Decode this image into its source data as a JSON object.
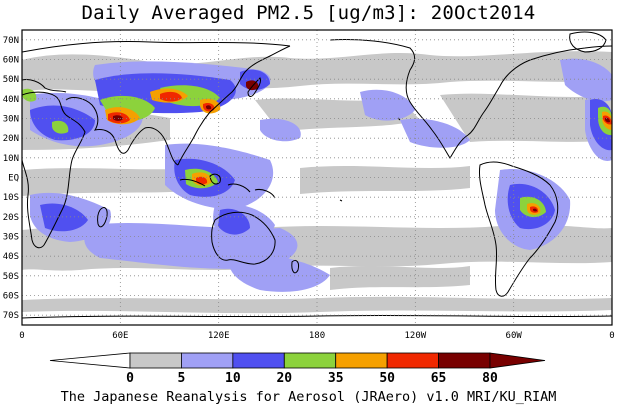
{
  "title": "Daily Averaged PM2.5 [ug/m3]: 20Oct2014",
  "footer": "The Japanese Reanalysis for Aerosol (JRAero) v1.0 MRI/KU_RIAM",
  "map": {
    "lat_range": [
      -75,
      75
    ],
    "lon_range": [
      0,
      360
    ],
    "lat_labels": [
      "70N",
      "60N",
      "50N",
      "40N",
      "30N",
      "20N",
      "10N",
      "EQ",
      "10S",
      "20S",
      "30S",
      "40S",
      "50S",
      "60S",
      "70S"
    ],
    "lon_labels": [
      "0",
      "60E",
      "120E",
      "180",
      "120W",
      "60W",
      "0"
    ],
    "gridlines": true
  },
  "colorbar": {
    "levels": [
      "0",
      "5",
      "10",
      "20",
      "35",
      "50",
      "65",
      "80"
    ],
    "colors": [
      "#ffffff",
      "#c8c8c8",
      "#a0a0f5",
      "#5050f0",
      "#8cd23c",
      "#f5a000",
      "#f02800",
      "#780000"
    ]
  },
  "colors": {
    "land": "#ffffff",
    "light_gray": "#c8c8c8",
    "light_blue": "#a0a0f5",
    "blue": "#5050f0",
    "green": "#8cd23c",
    "orange": "#f5a000",
    "red": "#f02800",
    "dark_red": "#780000"
  }
}
